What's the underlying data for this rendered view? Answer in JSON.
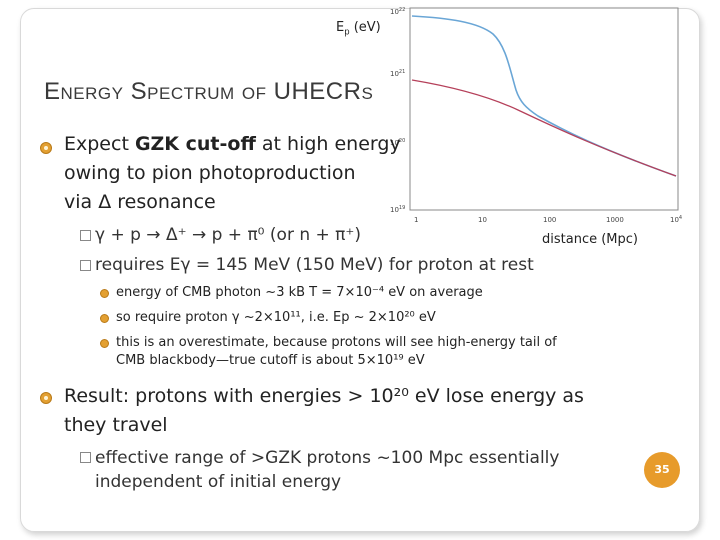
{
  "slide": {
    "title": "Energy Spectrum of UHECRs",
    "page_number": "35",
    "colors": {
      "accent": "#e79b2b",
      "curve_upper": "#6aa6d6",
      "curve_lower": "#b5405a"
    }
  },
  "plot": {
    "y_axis_label": "Ep (eV)",
    "x_axis_label": "distance (Mpc)",
    "y_ticks": [
      "10^22",
      "10^21",
      "10^20",
      "10^19"
    ],
    "x_ticks": [
      "1",
      "10",
      "100",
      "1000",
      "10^4"
    ]
  },
  "bullets": [
    {
      "pre": "Expect ",
      "bold": "GZK cut-off",
      "post_line1": " at high energy",
      "line2": "owing to pion photoproduction",
      "line3": "via Δ resonance"
    }
  ],
  "subbullets": {
    "reaction": "γ + p → Δ⁺ → p + π⁰ (or n + π⁺)",
    "threshold": "requires Eγ = 145 MeV (150 MeV) for proton at rest",
    "cmb": "energy of CMB photon ~3 kB T = 7×10⁻⁴ eV on average",
    "gamma": "so require proton γ ~2×10¹¹, i.e. Ep ~ 2×10²⁰ eV",
    "over1": "this is an overestimate, because protons will see high-energy tail of",
    "over2": "CMB blackbody—true cutoff is about 5×10¹⁹ eV"
  },
  "result": {
    "line1": "Result: protons with energies > 10²⁰ eV lose energy as",
    "line2": "they travel",
    "sub1": "effective range of >GZK protons ~100 Mpc essentially",
    "sub2": "independent of initial energy"
  }
}
